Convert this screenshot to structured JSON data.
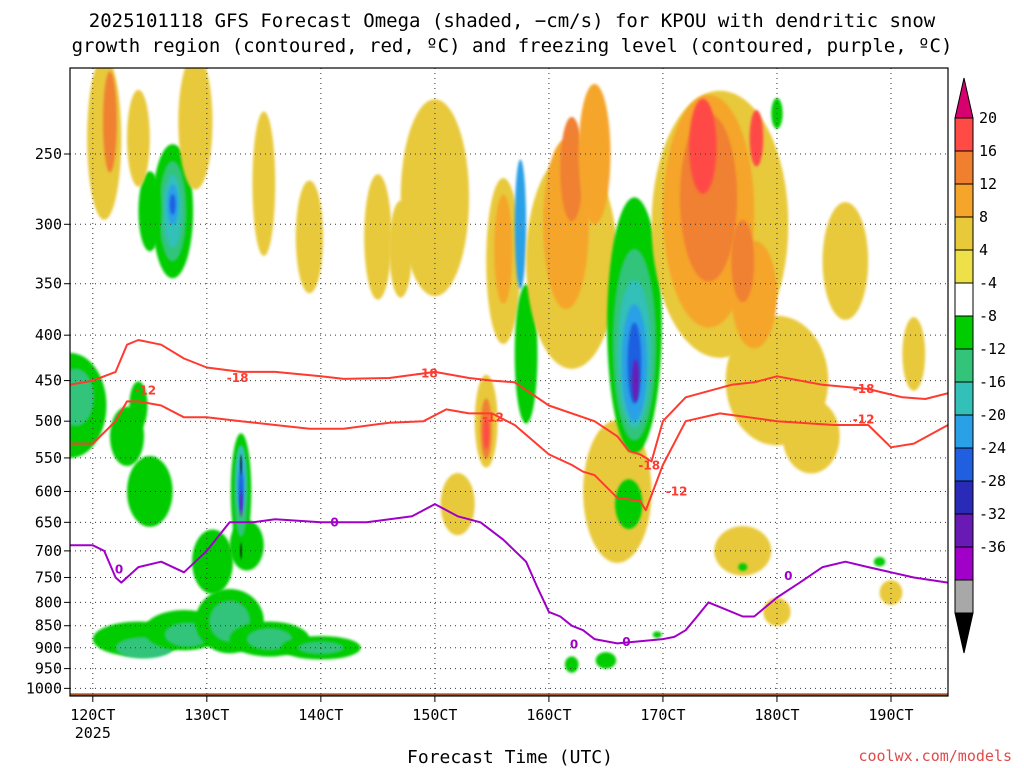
{
  "title": {
    "line1": "2025101118 GFS Forecast Omega (shaded, −cm/s) for KPOU with dendritic snow",
    "line2": "growth region (contoured, red, ºC) and freezing level (contoured, purple, ºC)"
  },
  "credit": "coolwx.com/models",
  "chart_data": {
    "type": "heatmap",
    "title": "2025101118 GFS Forecast Omega (shaded, −cm/s) for KPOU with dendritic snow growth region (contoured, red, ºC) and freezing level (contoured, purple, ºC)",
    "xlabel": "Forecast Time (UTC)",
    "ylabel": "",
    "x_range_hours": [
      -2,
      75
    ],
    "y_range_hpa": [
      1020,
      200
    ],
    "x_ticks": [
      {
        "hour": 0,
        "label": "120CT",
        "sublabel": "2025"
      },
      {
        "hour": 10,
        "label": "130CT"
      },
      {
        "hour": 20,
        "label": "140CT"
      },
      {
        "hour": 30,
        "label": "150CT"
      },
      {
        "hour": 40,
        "label": "160CT"
      },
      {
        "hour": 50,
        "label": "170CT"
      },
      {
        "hour": 60,
        "label": "180CT"
      },
      {
        "hour": 70,
        "label": "190CT"
      }
    ],
    "y_ticks": [
      {
        "p": 250,
        "label": "250"
      },
      {
        "p": 300,
        "label": "300"
      },
      {
        "p": 350,
        "label": "350"
      },
      {
        "p": 400,
        "label": "400"
      },
      {
        "p": 450,
        "label": "450"
      },
      {
        "p": 500,
        "label": "500"
      },
      {
        "p": 550,
        "label": "550"
      },
      {
        "p": 600,
        "label": "600"
      },
      {
        "p": 650,
        "label": "650"
      },
      {
        "p": 700,
        "label": "700"
      },
      {
        "p": 750,
        "label": "750"
      },
      {
        "p": 800,
        "label": "800"
      },
      {
        "p": 850,
        "label": "850"
      },
      {
        "p": 900,
        "label": "900"
      },
      {
        "p": 950,
        "label": "950"
      },
      {
        "p": 1000,
        "label": "1000"
      }
    ],
    "colorbar": {
      "units": "-cm/s",
      "levels": [
        20,
        16,
        12,
        8,
        4,
        -4,
        -8,
        -12,
        -16,
        -20,
        -24,
        -28,
        -32,
        -36
      ],
      "labels": [
        "20",
        "16",
        "12",
        "8",
        "4",
        "-4",
        "-8",
        "-12",
        "-16",
        "-20",
        "-24",
        "-28",
        "-32",
        "-36"
      ],
      "colors": [
        "#d6006e",
        "#ff4a46",
        "#f08030",
        "#f5a52a",
        "#e8c93a",
        "#eee048",
        "#ffffff",
        "#00cc00",
        "#33c47a",
        "#33c0b8",
        "#2aa0e6",
        "#1f5fe0",
        "#2a2ab8",
        "#6a1ab4",
        "#a000c8",
        "#a8a8a8",
        "#000000"
      ]
    },
    "series": [
      {
        "name": "-18 ºC isotherm",
        "color": "#ff3b30",
        "label": "-18",
        "label_positions": [
          [
            12.7,
            447
          ],
          [
            29.3,
            442
          ],
          [
            67.6,
            460
          ],
          [
            48.8,
            561
          ]
        ],
        "x": [
          -2,
          0,
          2,
          3,
          4,
          6,
          8,
          10,
          13,
          16,
          20,
          22,
          26,
          30,
          33,
          35,
          37,
          40,
          44,
          46,
          47,
          48,
          49,
          50,
          52,
          56,
          58,
          60,
          64,
          68,
          71,
          73,
          75
        ],
        "p": [
          455,
          450,
          440,
          410,
          405,
          410,
          425,
          435,
          440,
          440,
          445,
          448,
          447,
          440,
          447,
          450,
          452,
          480,
          500,
          520,
          540,
          545,
          555,
          500,
          470,
          455,
          452,
          445,
          455,
          460,
          470,
          472,
          465
        ]
      },
      {
        "name": "-12 ºC isotherm",
        "color": "#ff3b30",
        "label": "-12",
        "label_positions": [
          [
            4.6,
            462
          ],
          [
            35.1,
            495
          ],
          [
            67.6,
            498
          ],
          [
            51.2,
            600
          ]
        ],
        "x": [
          -2,
          0,
          2,
          3,
          4,
          6,
          8,
          10,
          13,
          16,
          19,
          22,
          26,
          29,
          31,
          33,
          35,
          37,
          40,
          42,
          43,
          44,
          46,
          48,
          48.5,
          50,
          52,
          55,
          60,
          65,
          68,
          70,
          72,
          75
        ],
        "p": [
          530,
          530,
          500,
          475,
          475,
          480,
          495,
          495,
          500,
          505,
          510,
          510,
          502,
          500,
          485,
          490,
          490,
          505,
          545,
          560,
          570,
          575,
          610,
          615,
          630,
          560,
          500,
          490,
          500,
          505,
          505,
          535,
          530,
          505
        ]
      },
      {
        "name": "0 ºC freezing level",
        "color": "#a000c8",
        "label": "0",
        "label_positions": [
          [
            2.3,
            735
          ],
          [
            21.2,
            650
          ],
          [
            42.2,
            893
          ],
          [
            46.8,
            887
          ],
          [
            61.0,
            747
          ]
        ],
        "x": [
          -2,
          0,
          1,
          2,
          2.5,
          4,
          6,
          8,
          10,
          12,
          14,
          16,
          20,
          24,
          28,
          30,
          32,
          34,
          36,
          38,
          39,
          40,
          41,
          42,
          43,
          44,
          46,
          48,
          50,
          51,
          52,
          53,
          54,
          55,
          57,
          58,
          60,
          62,
          64,
          66,
          68,
          70,
          72,
          75
        ],
        "p": [
          690,
          690,
          700,
          750,
          760,
          730,
          720,
          740,
          700,
          650,
          650,
          645,
          650,
          650,
          640,
          620,
          640,
          650,
          680,
          720,
          770,
          820,
          830,
          850,
          860,
          880,
          890,
          885,
          880,
          875,
          860,
          830,
          800,
          810,
          830,
          830,
          790,
          760,
          730,
          720,
          730,
          740,
          750,
          760
        ]
      }
    ]
  }
}
